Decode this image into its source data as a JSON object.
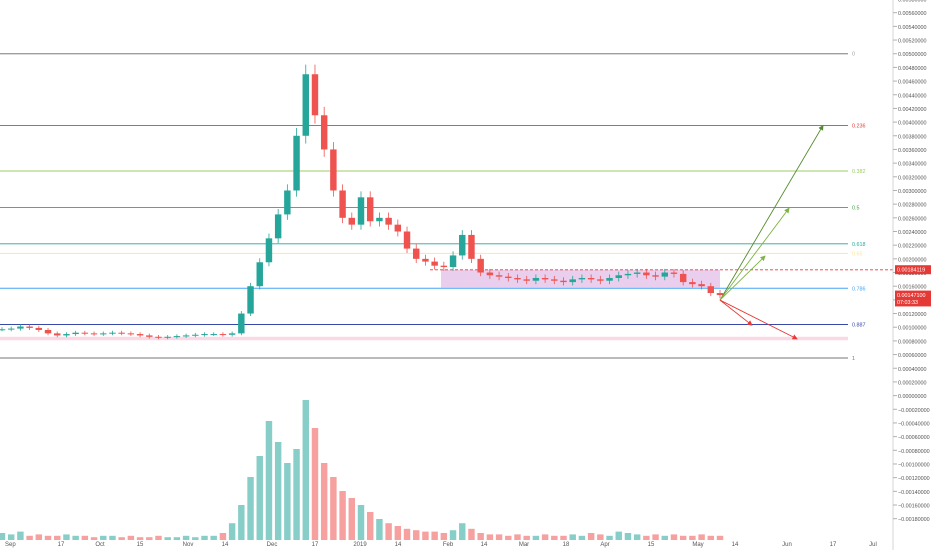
{
  "chart_data": {
    "type": "candlestick",
    "title": "",
    "x_axis": {
      "labels": [
        "Sep",
        "17",
        "Oct",
        "15",
        "Nov",
        "14",
        "Dec",
        "17",
        "2019",
        "14",
        "Feb",
        "14",
        "Mar",
        "18",
        "Apr",
        "15",
        "May",
        "14",
        "Jun",
        "17",
        "Jul"
      ]
    },
    "y_axis": {
      "range": [
        -0.0019,
        0.0059
      ],
      "ticks": [
        0.0058,
        0.0056,
        0.0054,
        0.0052,
        0.005,
        0.0048,
        0.0046,
        0.0044,
        0.0042,
        0.004,
        0.0038,
        0.0036,
        0.0034,
        0.0032,
        0.003,
        0.0028,
        0.0026,
        0.0024,
        0.0022,
        0.002,
        0.0018,
        0.0016,
        0.0014,
        0.0012,
        0.001,
        0.0008,
        0.0006,
        0.0004,
        0.0002,
        0.0,
        -0.0002,
        -0.0004,
        -0.0006,
        -0.0008,
        -0.001,
        -0.0012,
        -0.0014,
        -0.0016,
        -0.0018
      ],
      "tick_labels": [
        "0.00580000",
        "0.00560000",
        "0.00540000",
        "0.00520000",
        "0.00500000",
        "0.00480000",
        "0.00460000",
        "0.00440000",
        "0.00420000",
        "0.00400000",
        "0.00380000",
        "0.00360000",
        "0.00340000",
        "0.00320000",
        "0.00300000",
        "0.00280000",
        "0.00260000",
        "0.00240000",
        "0.00220000",
        "0.00200000",
        "0.00180000",
        "0.00160000",
        "0.00140000",
        "0.00120000",
        "0.00100000",
        "0.00080000",
        "0.00060000",
        "0.00040000",
        "0.00020000",
        "0.00000000",
        "−0.00020000",
        "−0.00040000",
        "−0.00060000",
        "−0.00080000",
        "−0.00100000",
        "−0.00120000",
        "−0.00140000",
        "−0.00160000",
        "−0.00180000"
      ],
      "grid": false
    },
    "fib_levels": [
      {
        "label": "0",
        "price": 0.005,
        "color": "#9e9e9e"
      },
      {
        "label": "0.236",
        "price": 0.00395,
        "color": "#e53935"
      },
      {
        "label": "0.382",
        "price": 0.003285,
        "color": "#9ccc65"
      },
      {
        "label": "0.5",
        "price": 0.00275,
        "color": "#43a047"
      },
      {
        "label": "0.618",
        "price": 0.00222,
        "color": "#26a69a"
      },
      {
        "label": "0.65",
        "price": 0.00208,
        "color": "#f9e79f"
      },
      {
        "label": "0.786",
        "price": 0.00157,
        "color": "#42a5f5"
      },
      {
        "label": "0.887",
        "price": 0.00104,
        "color": "#3949ab"
      },
      {
        "label": "1",
        "price": 0.00055,
        "color": "#757575"
      }
    ],
    "price_labels": [
      {
        "text": "0.00184119",
        "price": 0.001841,
        "color": "#e53935"
      },
      {
        "text": "0.00147100",
        "price": 0.00147,
        "color": "#e53935"
      },
      {
        "text": "07:03:33",
        "price": 0.00137,
        "color": "#e53935"
      }
    ],
    "dashed_resistance": 0.00184,
    "range_box": {
      "x_from": "Feb",
      "x_to": "May",
      "price_low": 0.00158,
      "price_high": 0.00184,
      "color": "#ce93d8"
    },
    "support_band": {
      "price_low": 0.00081,
      "price_high": 0.00086,
      "color": "#f48fb1"
    },
    "projections": [
      {
        "direction": "up",
        "target_price": 0.00395,
        "color": "#558b2f"
      },
      {
        "direction": "up",
        "target_price": 0.00274,
        "color": "#7cb342"
      },
      {
        "direction": "up",
        "target_price": 0.00204,
        "color": "#7cb342"
      },
      {
        "direction": "down",
        "target_price": 0.00103,
        "color": "#e53935"
      },
      {
        "direction": "down",
        "target_price": 0.00083,
        "color": "#e53935"
      }
    ],
    "price_series": {
      "description": "approximate closing prices, one per sampled day",
      "closes": [
        0.00097,
        0.00098,
        0.00101,
        0.00099,
        0.00096,
        0.00091,
        0.00088,
        0.0009,
        0.00092,
        0.00091,
        0.0009,
        0.00091,
        0.00092,
        0.00091,
        0.0009,
        0.00088,
        0.00086,
        0.00085,
        0.00086,
        0.00087,
        0.00088,
        0.00089,
        0.0009,
        0.0009,
        0.00089,
        0.00091,
        0.0012,
        0.0016,
        0.00195,
        0.0023,
        0.00265,
        0.003,
        0.0038,
        0.0047,
        0.0041,
        0.0036,
        0.003,
        0.0026,
        0.0025,
        0.0029,
        0.00255,
        0.0026,
        0.0025,
        0.0024,
        0.00215,
        0.002,
        0.00196,
        0.0019,
        0.00188,
        0.00205,
        0.00235,
        0.002,
        0.0018,
        0.00176,
        0.00174,
        0.00172,
        0.0017,
        0.00168,
        0.00172,
        0.0017,
        0.00168,
        0.00166,
        0.0017,
        0.00172,
        0.0017,
        0.00168,
        0.00172,
        0.00176,
        0.00178,
        0.0018,
        0.00176,
        0.00174,
        0.0018,
        0.00178,
        0.00166,
        0.00163,
        0.0016,
        0.0015,
        0.00147
      ]
    },
    "volume": {
      "description": "relative volume bars beneath price, peak in Dec",
      "values": [
        0.05,
        0.04,
        0.06,
        0.03,
        0.04,
        0.03,
        0.03,
        0.04,
        0.03,
        0.03,
        0.02,
        0.03,
        0.03,
        0.02,
        0.03,
        0.02,
        0.02,
        0.03,
        0.02,
        0.02,
        0.03,
        0.02,
        0.03,
        0.03,
        0.05,
        0.12,
        0.25,
        0.45,
        0.6,
        0.85,
        0.7,
        0.55,
        0.65,
        1.0,
        0.8,
        0.55,
        0.45,
        0.35,
        0.3,
        0.25,
        0.2,
        0.15,
        0.12,
        0.1,
        0.08,
        0.07,
        0.06,
        0.06,
        0.05,
        0.07,
        0.12,
        0.08,
        0.05,
        0.04,
        0.04,
        0.03,
        0.04,
        0.03,
        0.03,
        0.04,
        0.03,
        0.03,
        0.04,
        0.03,
        0.05,
        0.04,
        0.03,
        0.06,
        0.05,
        0.04,
        0.03,
        0.04,
        0.03,
        0.04,
        0.03,
        0.03,
        0.04,
        0.03,
        0.03
      ]
    }
  }
}
